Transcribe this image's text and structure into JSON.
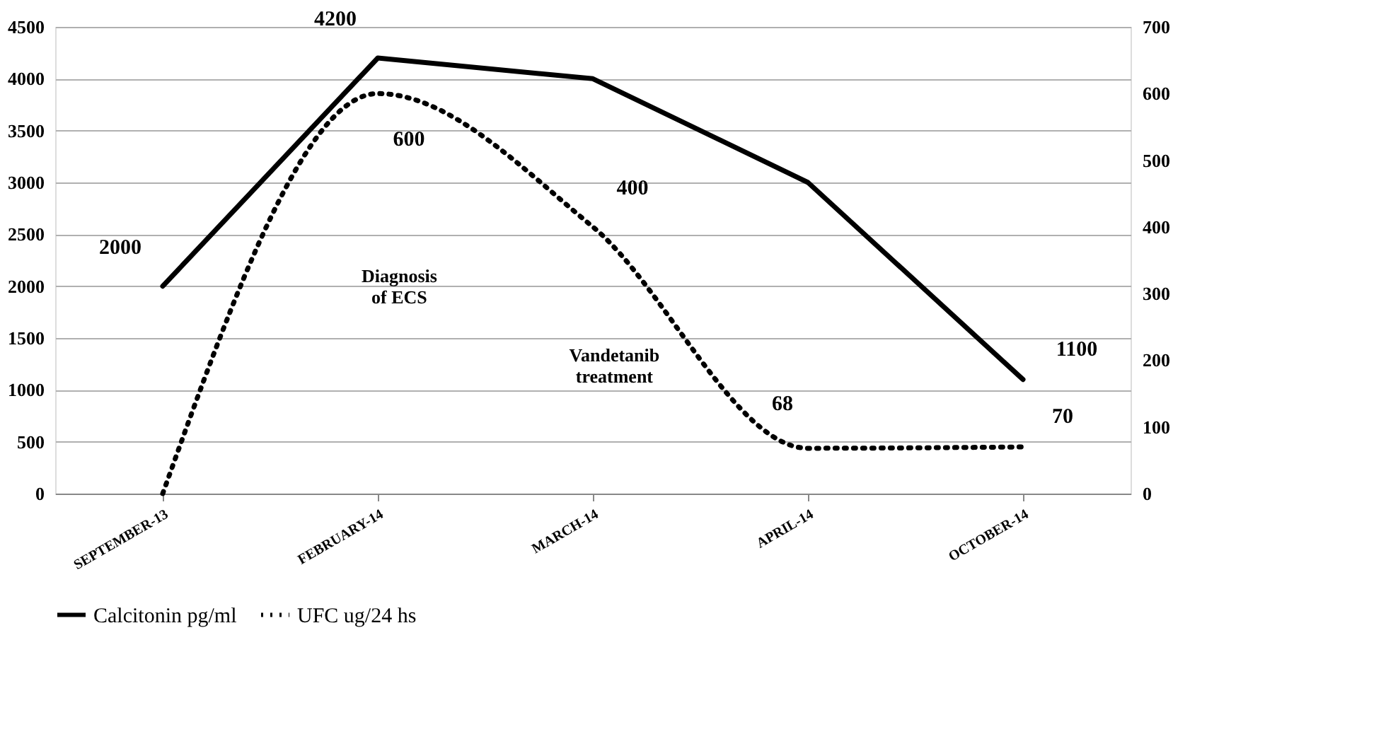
{
  "chart_data": {
    "type": "line",
    "categories": [
      "SEPTEMBER-13",
      "FEBRUARY-14",
      "MARCH-14",
      "APRIL-14",
      "OCTOBER-14"
    ],
    "series": [
      {
        "name": "Calcitonin pg/ml",
        "color": "#000000",
        "line_style": "solid",
        "values": [
          2000,
          4200,
          4000,
          3000,
          1100
        ],
        "value_labels": [
          "2000",
          "4200",
          null,
          null,
          "1100"
        ]
      },
      {
        "name": "UFC ug/24 hs",
        "color": "#000000",
        "line_style": "dotted",
        "axis": "y2",
        "values": [
          0,
          600,
          400,
          68,
          70
        ],
        "value_labels": [
          null,
          "600",
          "400",
          "68",
          "70"
        ]
      }
    ],
    "ylim": [
      0,
      4500
    ],
    "yticks": [
      0,
      500,
      1000,
      1500,
      2000,
      2500,
      3000,
      3500,
      4000,
      4500
    ],
    "y2lim": [
      0,
      700
    ],
    "y2ticks": [
      0,
      100,
      200,
      300,
      400,
      500,
      600,
      700
    ],
    "grid": "y",
    "legend": "bottom",
    "marker": "none",
    "annotations": [
      "Diagnosis of ECS",
      "Vandetanib treatment"
    ]
  }
}
